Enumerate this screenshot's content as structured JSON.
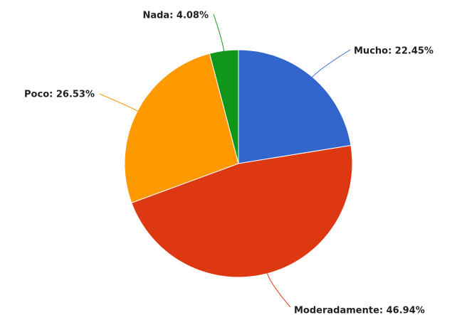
{
  "chart_data": {
    "type": "pie",
    "values": [
      22.45,
      46.94,
      26.53,
      4.08
    ],
    "value_labels": [
      "Mucho: 22.45%",
      "Moderadamente: 46.94%",
      "Poco: 26.53%",
      "Nada: 4.08%"
    ],
    "colors": [
      "#3366cc",
      "#dc3912",
      "#ff9900",
      "#109618"
    ]
  }
}
